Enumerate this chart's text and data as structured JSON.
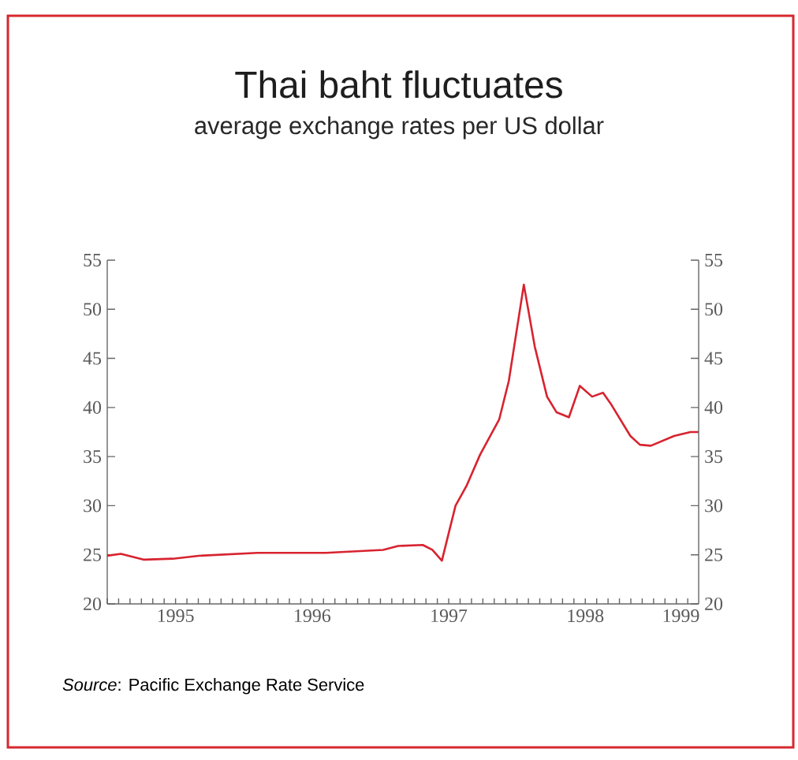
{
  "chart_data": {
    "type": "line",
    "title": "Thai baht fluctuates",
    "subtitle": "average exchange rates per US dollar",
    "annotations": [
      "*Source*: Pacific Exchange Rate Service"
    ],
    "x": [
      1995.0,
      1995.1,
      1995.27,
      1995.48,
      1995.67,
      1996.1,
      1996.6,
      1997.02,
      1997.13,
      1997.31,
      1997.38,
      1997.45,
      1997.55,
      1997.63,
      1997.73,
      1997.87,
      1997.94,
      1998.05,
      1998.13,
      1998.22,
      1998.29,
      1998.38,
      1998.46,
      1998.55,
      1998.63,
      1998.69,
      1998.83,
      1998.9,
      1998.98,
      1999.15,
      1999.27,
      1999.33
    ],
    "series": [
      {
        "color": "#d8232f",
        "values": [
          24.9,
          25.1,
          24.5,
          24.6,
          24.9,
          25.2,
          25.2,
          25.5,
          25.9,
          26.0,
          25.5,
          24.4,
          30.0,
          32.0,
          35.2,
          38.8,
          42.7,
          52.5,
          46.2,
          41.1,
          39.5,
          39.0,
          42.2,
          41.1,
          41.5,
          40.3,
          37.1,
          36.2,
          36.1,
          37.1,
          37.5,
          37.5
        ]
      }
    ],
    "xlim": [
      1995.0,
      1999.33
    ],
    "xticks": [
      {
        "value": 1995.5,
        "label": "1995"
      },
      {
        "value": 1996,
        "label": null
      },
      {
        "value": 1996.5,
        "label": "1996"
      },
      {
        "value": 1997,
        "label": null
      },
      {
        "value": 1997.5,
        "label": "1997"
      },
      {
        "value": 1998,
        "label": null
      },
      {
        "value": 1998.5,
        "label": "1998"
      },
      {
        "value": 1999,
        "label": null
      },
      {
        "value": 1999.2,
        "label": "1999"
      }
    ],
    "ylim": [
      20,
      55
    ],
    "yticks": [
      20,
      25,
      30,
      35,
      40,
      45,
      50,
      55
    ],
    "y2lim": [
      20,
      55
    ],
    "y2ticks": [
      20,
      25,
      30,
      35,
      40,
      45,
      50,
      55
    ],
    "marker": "none",
    "line_style": "solid"
  }
}
